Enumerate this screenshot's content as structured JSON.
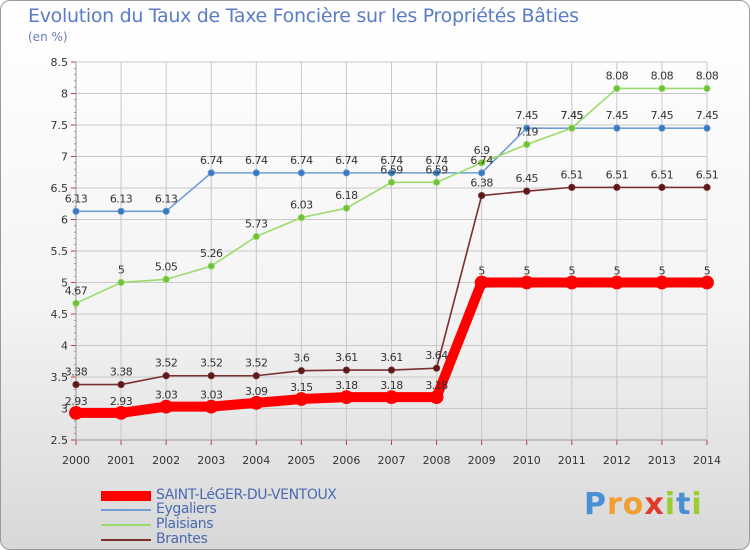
{
  "title": "Evolution du Taux de Taxe Foncière sur les Propriétés Bâties",
  "unit": "(en %)",
  "logo": {
    "letters": [
      "P",
      "r",
      "o",
      "x",
      "i",
      "t",
      "i"
    ]
  },
  "colors": {
    "saint_leger": "#ff0000",
    "eygaliers": "#6d9ed6",
    "plaisians": "#9bdb6b",
    "brantes": "#7a2f2f",
    "grid": "#c8c8c8"
  },
  "chart_data": {
    "type": "line",
    "title": "Evolution du Taux de Taxe Foncière sur les Propriétés Bâties",
    "ylabel": "(en %)",
    "xlabel": "",
    "x": [
      "2000",
      "2001",
      "2002",
      "2003",
      "2004",
      "2005",
      "2006",
      "2007",
      "2008",
      "2009",
      "2010",
      "2011",
      "2012",
      "2013",
      "2014"
    ],
    "ylim": [
      2.5,
      8.5
    ],
    "yticks": [
      "2.5",
      "3",
      "3.5",
      "4",
      "4.5",
      "5",
      "5.5",
      "6",
      "6.5",
      "7",
      "7.5",
      "8",
      "8.5"
    ],
    "legend_position": "bottom-left",
    "series": [
      {
        "name": "SAINT-LéGER-DU-VENTOUX",
        "key": "saint_leger",
        "values": [
          2.93,
          2.93,
          3.03,
          3.03,
          3.09,
          3.15,
          3.18,
          3.18,
          3.18,
          5,
          5,
          5,
          5,
          5,
          5
        ],
        "labels": [
          "2.93",
          "2.93",
          "3.03",
          "3.03",
          "3.09",
          "3.15",
          "3.18",
          "3.18",
          "3.18",
          "5",
          "5",
          "5",
          "5",
          "5",
          "5"
        ]
      },
      {
        "name": "Eygaliers",
        "key": "eygaliers",
        "values": [
          6.13,
          6.13,
          6.13,
          6.74,
          6.74,
          6.74,
          6.74,
          6.74,
          6.74,
          6.74,
          7.45,
          7.45,
          7.45,
          7.45,
          7.45
        ],
        "labels": [
          "6.13",
          "6.13",
          "6.13",
          "6.74",
          "6.74",
          "6.74",
          "6.74",
          "6.74",
          "6.74",
          "6.74",
          "7.45",
          "7.45",
          "7.45",
          "7.45",
          "7.45"
        ]
      },
      {
        "name": "Plaisians",
        "key": "plaisians",
        "values": [
          4.67,
          5,
          5.05,
          5.26,
          5.73,
          6.03,
          6.18,
          6.59,
          6.59,
          6.9,
          7.19,
          7.45,
          8.08,
          8.08,
          8.08
        ],
        "labels": [
          "4.67",
          "5",
          "5.05",
          "5.26",
          "5.73",
          "6.03",
          "6.18",
          "6.59",
          "6.59",
          "6.9",
          "7.19",
          "7.45",
          "8.08",
          "8.08",
          "8.08"
        ]
      },
      {
        "name": "Brantes",
        "key": "brantes",
        "values": [
          3.38,
          3.38,
          3.52,
          3.52,
          3.52,
          3.6,
          3.61,
          3.61,
          3.64,
          6.38,
          6.45,
          6.51,
          6.51,
          6.51,
          6.51
        ],
        "labels": [
          "3.38",
          "3.38",
          "3.52",
          "3.52",
          "3.52",
          "3.6",
          "3.61",
          "3.61",
          "3.64",
          "6.38",
          "6.45",
          "6.51",
          "6.51",
          "6.51",
          "6.51"
        ]
      }
    ]
  }
}
